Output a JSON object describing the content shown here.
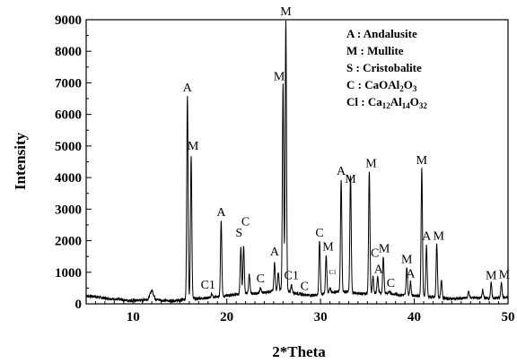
{
  "chart_data": {
    "type": "line",
    "title": "",
    "xlabel": "2*Theta",
    "ylabel": "Intensity",
    "xlim": [
      5,
      50
    ],
    "ylim": [
      0,
      9000
    ],
    "xticks": [
      10,
      20,
      30,
      40,
      50
    ],
    "yticks": [
      0,
      1000,
      2000,
      3000,
      4000,
      5000,
      6000,
      7000,
      8000,
      9000
    ],
    "grid": false,
    "legend_placement": "top-right",
    "legend": [
      {
        "key": "A",
        "name": "Andalusite"
      },
      {
        "key": "M",
        "name": "Mullite"
      },
      {
        "key": "S",
        "name": "Cristobalite"
      },
      {
        "key": "C",
        "name": "CaOAl2O3",
        "parts": [
          [
            "CaOAl",
            ""
          ],
          [
            "2",
            "sub"
          ],
          [
            "O",
            ""
          ],
          [
            "3",
            "sub"
          ]
        ]
      },
      {
        "key": "Cl",
        "name": "Ca12Al14O32",
        "parts": [
          [
            "Ca",
            ""
          ],
          [
            "12",
            "sub"
          ],
          [
            "Al",
            ""
          ],
          [
            "14",
            "sub"
          ],
          [
            "O",
            ""
          ],
          [
            "32",
            "sub"
          ]
        ]
      }
    ],
    "baseline": [
      [
        5,
        250
      ],
      [
        6,
        230
      ],
      [
        7,
        180
      ],
      [
        8,
        150
      ],
      [
        9,
        120
      ],
      [
        10,
        100
      ],
      [
        11,
        120
      ],
      [
        11.6,
        150
      ],
      [
        12,
        420
      ],
      [
        12.4,
        150
      ],
      [
        13,
        110
      ],
      [
        14,
        100
      ],
      [
        15,
        110
      ],
      [
        16,
        150
      ],
      [
        17,
        170
      ],
      [
        18,
        190
      ],
      [
        19,
        220
      ],
      [
        20,
        260
      ],
      [
        21,
        300
      ],
      [
        22,
        320
      ],
      [
        23,
        330
      ],
      [
        24,
        360
      ],
      [
        25,
        420
      ],
      [
        26,
        440
      ],
      [
        27,
        360
      ],
      [
        28,
        300
      ],
      [
        29,
        270
      ],
      [
        30,
        300
      ],
      [
        31,
        360
      ],
      [
        32,
        400
      ],
      [
        33,
        380
      ],
      [
        34,
        330
      ],
      [
        35,
        320
      ],
      [
        36,
        350
      ],
      [
        37,
        340
      ],
      [
        38,
        300
      ],
      [
        39,
        280
      ],
      [
        40,
        260
      ],
      [
        41,
        240
      ],
      [
        42,
        210
      ],
      [
        43,
        180
      ],
      [
        44,
        160
      ],
      [
        45,
        170
      ],
      [
        46,
        200
      ],
      [
        47,
        190
      ],
      [
        48,
        180
      ],
      [
        49,
        190
      ],
      [
        50,
        200
      ]
    ],
    "peaks": [
      {
        "x": 12.0,
        "y": 420
      },
      {
        "x": 15.8,
        "y": 6600
      },
      {
        "x": 16.2,
        "y": 4700
      },
      {
        "x": 18.4,
        "y": 330
      },
      {
        "x": 19.4,
        "y": 2650
      },
      {
        "x": 21.5,
        "y": 1800
      },
      {
        "x": 21.8,
        "y": 1850
      },
      {
        "x": 22.4,
        "y": 960
      },
      {
        "x": 23.6,
        "y": 500
      },
      {
        "x": 25.1,
        "y": 1300
      },
      {
        "x": 25.5,
        "y": 1000
      },
      {
        "x": 26.0,
        "y": 6950
      },
      {
        "x": 26.3,
        "y": 9000
      },
      {
        "x": 26.9,
        "y": 600
      },
      {
        "x": 28.4,
        "y": 250
      },
      {
        "x": 29.9,
        "y": 2000
      },
      {
        "x": 30.6,
        "y": 1550
      },
      {
        "x": 31.0,
        "y": 500
      },
      {
        "x": 32.2,
        "y": 3950
      },
      {
        "x": 33.2,
        "y": 4100
      },
      {
        "x": 35.2,
        "y": 4200
      },
      {
        "x": 35.6,
        "y": 850
      },
      {
        "x": 36.1,
        "y": 850
      },
      {
        "x": 36.7,
        "y": 1500
      },
      {
        "x": 37.4,
        "y": 400
      },
      {
        "x": 39.2,
        "y": 1150
      },
      {
        "x": 39.6,
        "y": 700
      },
      {
        "x": 40.8,
        "y": 4300
      },
      {
        "x": 41.3,
        "y": 1850
      },
      {
        "x": 42.4,
        "y": 1900
      },
      {
        "x": 42.9,
        "y": 750
      },
      {
        "x": 45.8,
        "y": 400
      },
      {
        "x": 47.3,
        "y": 420
      },
      {
        "x": 48.2,
        "y": 650
      },
      {
        "x": 49.3,
        "y": 680
      }
    ],
    "peak_labels": [
      {
        "text": "A",
        "x": 15.8,
        "y": 6650
      },
      {
        "text": "M",
        "x": 16.4,
        "y": 4800
      },
      {
        "text": "C1",
        "x": 18.0,
        "y": 400
      },
      {
        "text": "A",
        "x": 19.4,
        "y": 2700
      },
      {
        "text": "S",
        "x": 21.3,
        "y": 2050
      },
      {
        "text": "C",
        "x": 22.0,
        "y": 2400
      },
      {
        "text": "C",
        "x": 23.6,
        "y": 600
      },
      {
        "text": "A",
        "x": 25.1,
        "y": 1450
      },
      {
        "text": "M",
        "x": 25.6,
        "y": 7000
      },
      {
        "text": "M",
        "x": 26.3,
        "y": 9050
      },
      {
        "text": "C1",
        "x": 26.9,
        "y": 700
      },
      {
        "text": "C",
        "x": 28.3,
        "y": 350
      },
      {
        "text": "C",
        "x": 29.9,
        "y": 2050
      },
      {
        "text": "M",
        "x": 30.8,
        "y": 1600
      },
      {
        "text": "C1",
        "x": 31.3,
        "y": 850,
        "small": true
      },
      {
        "text": "A",
        "x": 32.2,
        "y": 4000
      },
      {
        "text": "M",
        "x": 33.2,
        "y": 3750
      },
      {
        "text": "M",
        "x": 35.4,
        "y": 4250
      },
      {
        "text": "C",
        "x": 35.8,
        "y": 1400
      },
      {
        "text": "M",
        "x": 36.8,
        "y": 1550
      },
      {
        "text": "A",
        "x": 36.2,
        "y": 900
      },
      {
        "text": "C",
        "x": 37.5,
        "y": 450
      },
      {
        "text": "M",
        "x": 39.2,
        "y": 1200
      },
      {
        "text": "A",
        "x": 39.6,
        "y": 750
      },
      {
        "text": "M",
        "x": 40.8,
        "y": 4350
      },
      {
        "text": "A",
        "x": 41.3,
        "y": 1950
      },
      {
        "text": "M",
        "x": 42.6,
        "y": 1950
      },
      {
        "text": "M",
        "x": 48.2,
        "y": 700
      },
      {
        "text": "M",
        "x": 49.6,
        "y": 720
      }
    ]
  }
}
